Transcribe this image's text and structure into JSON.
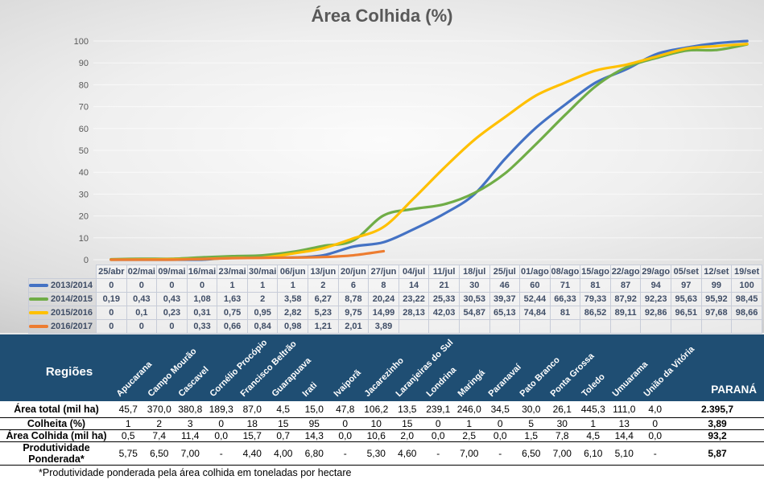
{
  "title": "Área Colhida (%)",
  "colors": {
    "chart_title": "#595959",
    "table_text": "#3f4d66",
    "header_bg": "#1f4e73",
    "header_text": "#ffffff",
    "series_blue": "#4472C4",
    "series_green": "#70AD47",
    "series_yellow": "#FFC000",
    "series_orange": "#ED7D31"
  },
  "chart_data": {
    "type": "line",
    "title": "Área Colhida (%)",
    "xlabel": "",
    "ylabel": "",
    "ylim": [
      0,
      100
    ],
    "ytick_step": 10,
    "grid": true,
    "legend_position": "data-table-left",
    "x": [
      "25/abr",
      "02/mai",
      "09/mai",
      "16/mai",
      "23/mai",
      "30/mai",
      "06/jun",
      "13/jun",
      "20/jun",
      "27/jun",
      "04/jul",
      "11/jul",
      "18/jul",
      "25/jul",
      "01/ago",
      "08/ago",
      "15/ago",
      "22/ago",
      "29/ago",
      "05/set",
      "12/set",
      "19/set"
    ],
    "series": [
      {
        "name": "2013/2014",
        "color": "#4472C4",
        "values": [
          0,
          0,
          0,
          0,
          1,
          1,
          1,
          2,
          6,
          8,
          14,
          21,
          30,
          46,
          60,
          71,
          81,
          87,
          94,
          97,
          99,
          100
        ]
      },
      {
        "name": "2014/2015",
        "color": "#70AD47",
        "values": [
          0.19,
          0.43,
          0.43,
          1.08,
          1.63,
          2,
          3.58,
          6.27,
          8.78,
          20.24,
          23.22,
          25.33,
          30.53,
          39.37,
          52.44,
          66.33,
          79.33,
          87.92,
          92.23,
          95.63,
          95.92,
          98.45
        ]
      },
      {
        "name": "2015/2016",
        "color": "#FFC000",
        "values": [
          0,
          0.1,
          0.23,
          0.31,
          0.75,
          0.95,
          2.82,
          5.23,
          9.75,
          14.99,
          28.13,
          42.03,
          54.87,
          65.13,
          74.84,
          81,
          86.52,
          89.11,
          92.86,
          96.51,
          97.68,
          98.66
        ]
      },
      {
        "name": "2016/2017",
        "color": "#ED7D31",
        "values": [
          0,
          0,
          0,
          0.33,
          0.66,
          0.84,
          0.98,
          1.21,
          2.01,
          3.89,
          null,
          null,
          null,
          null,
          null,
          null,
          null,
          null,
          null,
          null,
          null,
          null
        ]
      }
    ]
  },
  "region_table": {
    "header_label": "Regiões",
    "total_label": "PARANÁ",
    "regions": [
      "Apucarana",
      "Campo Mourão",
      "Cascavel",
      "Cornélio Procópio",
      "Francisco Beltrão",
      "Guarapuava",
      "Irati",
      "Ivaiporã",
      "Jacarezinho",
      "Laranjeiras do Sul",
      "Londrina",
      "Maringá",
      "Paranavaí",
      "Pato Branco",
      "Ponta Grossa",
      "Toledo",
      "Umuarama",
      "União da Vitória"
    ],
    "rows": [
      {
        "label": "Área total (mil ha)",
        "values": [
          "45,7",
          "370,0",
          "380,8",
          "189,3",
          "87,0",
          "4,5",
          "15,0",
          "47,8",
          "106,2",
          "13,5",
          "239,1",
          "246,0",
          "34,5",
          "30,0",
          "26,1",
          "445,3",
          "111,0",
          "4,0"
        ],
        "total": "2.395,7"
      },
      {
        "label": "Colheita (%)",
        "values": [
          "1",
          "2",
          "3",
          "0",
          "18",
          "15",
          "95",
          "0",
          "10",
          "15",
          "0",
          "1",
          "0",
          "5",
          "30",
          "1",
          "13",
          "0"
        ],
        "total": "3,89"
      },
      {
        "label": "Área Colhida (mil ha)",
        "values": [
          "0,5",
          "7,4",
          "11,4",
          "0,0",
          "15,7",
          "0,7",
          "14,3",
          "0,0",
          "10,6",
          "2,0",
          "0,0",
          "2,5",
          "0,0",
          "1,5",
          "7,8",
          "4,5",
          "14,4",
          "0,0"
        ],
        "total": "93,2"
      },
      {
        "label": "Produtividade Ponderada*",
        "values": [
          "5,75",
          "6,50",
          "7,00",
          "-",
          "4,40",
          "4,00",
          "6,80",
          "-",
          "5,30",
          "4,60",
          "-",
          "7,00",
          "-",
          "6,50",
          "7,00",
          "6,10",
          "5,10",
          "-"
        ],
        "total": "5,87"
      }
    ],
    "footnote": "*Produtividade ponderada pela área colhida em toneladas por hectare"
  }
}
